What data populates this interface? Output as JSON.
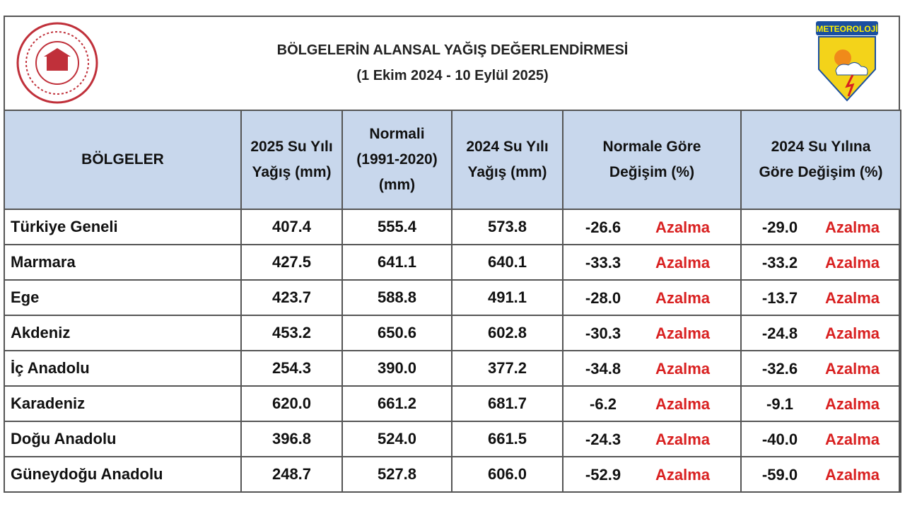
{
  "header": {
    "title": "BÖLGELERİN ALANSAL YAĞIŞ DEĞERLENDİRMESİ",
    "subtitle": "(1 Ekim 2024 - 10 Eylül 2025)",
    "logo_text": "METEOROLOJİ"
  },
  "table": {
    "columns": [
      [
        "BÖLGELER"
      ],
      [
        "2025 Su Yılı",
        "Yağış (mm)"
      ],
      [
        "Normali",
        "(1991-2020)",
        "(mm)"
      ],
      [
        "2024 Su Yılı",
        "Yağış (mm)"
      ],
      [
        "Normale Göre",
        "Değişim (%)"
      ],
      [
        "2024 Su Yılına",
        "Göre Değişim (%)"
      ]
    ],
    "rows": [
      [
        "Türkiye Geneli",
        "407.4",
        "555.4",
        "573.8",
        {
          "value": "-26.6",
          "label": "Azalma"
        },
        {
          "value": "-29.0",
          "label": "Azalma"
        }
      ],
      [
        "Marmara",
        "427.5",
        "641.1",
        "640.1",
        {
          "value": "-33.3",
          "label": "Azalma"
        },
        {
          "value": "-33.2",
          "label": "Azalma"
        }
      ],
      [
        "Ege",
        "423.7",
        "588.8",
        "491.1",
        {
          "value": "-28.0",
          "label": "Azalma"
        },
        {
          "value": "-13.7",
          "label": "Azalma"
        }
      ],
      [
        "Akdeniz",
        "453.2",
        "650.6",
        "602.8",
        {
          "value": "-30.3",
          "label": "Azalma"
        },
        {
          "value": "-24.8",
          "label": "Azalma"
        }
      ],
      [
        "İç Anadolu",
        "254.3",
        "390.0",
        "377.2",
        {
          "value": "-34.8",
          "label": "Azalma"
        },
        {
          "value": "-32.6",
          "label": "Azalma"
        }
      ],
      [
        "Karadeniz",
        "620.0",
        "661.2",
        "681.7",
        {
          "value": "-6.2",
          "label": "Azalma"
        },
        {
          "value": "-9.1",
          "label": "Azalma"
        }
      ],
      [
        "Doğu Anadolu",
        "396.8",
        "524.0",
        "661.5",
        {
          "value": "-24.3",
          "label": "Azalma"
        },
        {
          "value": "-40.0",
          "label": "Azalma"
        }
      ],
      [
        "Güneydoğu Anadolu",
        "248.7",
        "527.8",
        "606.0",
        {
          "value": "-52.9",
          "label": "Azalma"
        },
        {
          "value": "-59.0",
          "label": "Azalma"
        }
      ]
    ]
  }
}
